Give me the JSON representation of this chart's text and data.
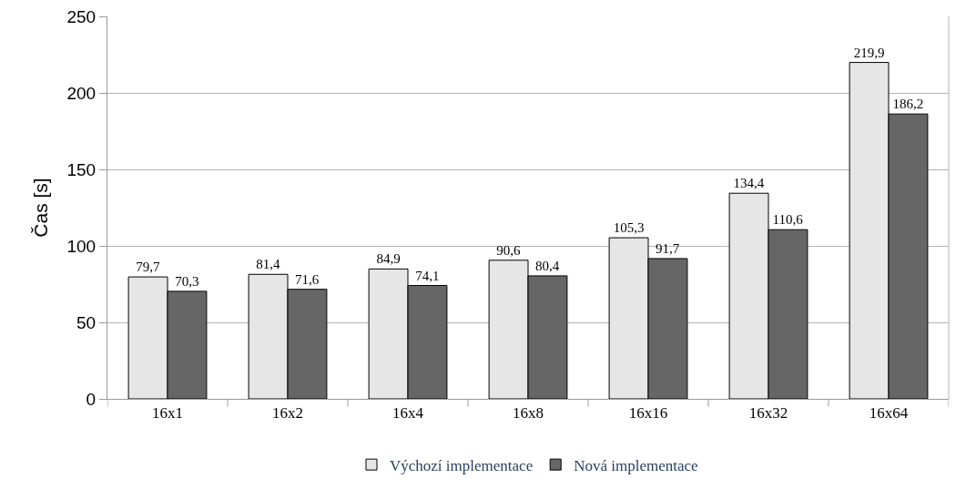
{
  "chart_data": {
    "type": "bar",
    "ylabel": "Čas [s]",
    "categories": [
      "16x1",
      "16x2",
      "16x4",
      "16x8",
      "16x16",
      "16x32",
      "16x64"
    ],
    "series": [
      {
        "name": "Výchozí implementace",
        "color": "#e6e6e6",
        "values": [
          79.7,
          81.4,
          84.9,
          90.6,
          105.3,
          134.4,
          219.9
        ],
        "value_labels": [
          "79,7",
          "81,4",
          "84,9",
          "90,6",
          "105,3",
          "134,4",
          "219,9"
        ]
      },
      {
        "name": "Nová implementace",
        "color": "#666666",
        "values": [
          70.3,
          71.6,
          74.1,
          80.4,
          91.7,
          110.6,
          186.2
        ],
        "value_labels": [
          "70,3",
          "71,6",
          "74,1",
          "80,4",
          "91,7",
          "110,6",
          "186,2"
        ]
      }
    ],
    "ylim": [
      0,
      250
    ],
    "yticks": [
      0,
      50,
      100,
      150,
      200,
      250
    ],
    "grid": "y",
    "legend": "bottom"
  }
}
